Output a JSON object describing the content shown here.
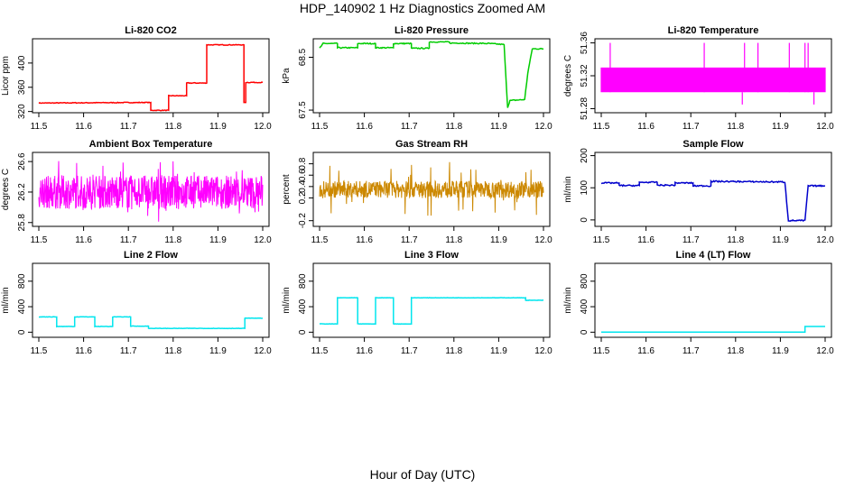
{
  "figure": {
    "title": "HDP_140902  1 Hz Diagnostics Zoomed AM",
    "xlabel": "Hour of Day (UTC)"
  },
  "chart_data": [
    {
      "type": "line",
      "title": "Li-820 CO2",
      "ylabel": "Licor ppm",
      "color": "#ff0000",
      "xlim": [
        11.5,
        12.0
      ],
      "ylim": [
        318,
        440
      ],
      "xticks": [
        "11.5",
        "11.6",
        "11.7",
        "11.8",
        "11.9",
        "12.0"
      ],
      "yticks": [
        "320",
        "360",
        "400"
      ],
      "noise": 0.6,
      "series": [
        {
          "x": [
            11.5,
            11.75,
            11.75,
            11.79,
            11.79,
            11.83,
            11.83,
            11.875,
            11.875,
            11.958,
            11.958,
            11.962,
            11.962,
            12.0
          ],
          "y": [
            334,
            335,
            322,
            322,
            346,
            346,
            367,
            367,
            430,
            430,
            335,
            335,
            368,
            368
          ]
        }
      ]
    },
    {
      "type": "line",
      "title": "Li-820 Pressure",
      "ylabel": "kPa",
      "color": "#00cc00",
      "xlim": [
        11.5,
        12.0
      ],
      "ylim": [
        67.45,
        68.85
      ],
      "xticks": [
        "11.5",
        "11.6",
        "11.7",
        "11.8",
        "11.9",
        "12.0"
      ],
      "yticks": [
        "67.5",
        "68.5"
      ],
      "noise": 0.01,
      "series": [
        {
          "x": [
            11.5,
            11.508,
            11.54,
            11.54,
            11.585,
            11.585,
            11.625,
            11.625,
            11.665,
            11.665,
            11.705,
            11.705,
            11.745,
            11.745,
            11.79,
            11.79,
            11.88,
            11.912,
            11.92,
            11.925,
            11.958,
            11.965,
            11.975,
            12.0
          ],
          "y": [
            68.67,
            68.76,
            68.76,
            68.68,
            68.68,
            68.76,
            68.76,
            68.68,
            68.68,
            68.76,
            68.76,
            68.67,
            68.67,
            68.79,
            68.79,
            68.77,
            68.76,
            68.74,
            67.55,
            67.68,
            67.7,
            68.2,
            68.66,
            68.66
          ]
        }
      ]
    },
    {
      "type": "line",
      "title": "Li-820 Temperature",
      "ylabel": "degrees C",
      "color": "#ff00ff",
      "xlim": [
        11.5,
        12.0
      ],
      "ylim": [
        51.275,
        51.365
      ],
      "xticks": [
        "11.5",
        "11.6",
        "11.7",
        "11.8",
        "11.9",
        "12.0"
      ],
      "yticks": [
        "51.28",
        "51.32",
        "51.36"
      ],
      "noise": 0,
      "style": "toggle",
      "levels": [
        51.3,
        51.33
      ],
      "spikes": [
        {
          "x": 11.52,
          "y": 51.36
        },
        {
          "x": 11.73,
          "y": 51.36
        },
        {
          "x": 11.815,
          "y": 51.285
        },
        {
          "x": 11.82,
          "y": 51.36
        },
        {
          "x": 11.85,
          "y": 51.36
        },
        {
          "x": 11.92,
          "y": 51.36
        },
        {
          "x": 11.955,
          "y": 51.36
        },
        {
          "x": 11.962,
          "y": 51.36
        },
        {
          "x": 11.975,
          "y": 51.285
        }
      ]
    },
    {
      "type": "line",
      "title": "Ambient Box Temperature",
      "ylabel": "degrees C",
      "color": "#ff00ff",
      "xlim": [
        11.5,
        12.0
      ],
      "ylim": [
        25.75,
        26.72
      ],
      "xticks": [
        "11.5",
        "11.6",
        "11.7",
        "11.8",
        "11.9",
        "12.0"
      ],
      "yticks": [
        "25.8",
        "26.2",
        "26.6"
      ],
      "style": "dense",
      "center": 26.2,
      "spread": 0.22,
      "peak": 0.42
    },
    {
      "type": "line",
      "title": "Gas Stream RH",
      "ylabel": "percent",
      "color": "#cc8800",
      "xlim": [
        11.5,
        12.0
      ],
      "ylim": [
        -0.3,
        1.0
      ],
      "xticks": [
        "11.5",
        "11.6",
        "11.7",
        "11.8",
        "11.9",
        "12.0"
      ],
      "yticks": [
        "-0.2",
        "0.2",
        "0.4",
        "0.6",
        "0.8"
      ],
      "style": "dense",
      "center": 0.35,
      "spread": 0.15,
      "peak": 0.5
    },
    {
      "type": "line",
      "title": "Sample Flow",
      "ylabel": "ml/min",
      "color": "#0000cc",
      "xlim": [
        11.5,
        12.0
      ],
      "ylim": [
        -20,
        210
      ],
      "xticks": [
        "11.5",
        "11.6",
        "11.7",
        "11.8",
        "11.9",
        "12.0"
      ],
      "yticks": [
        "0",
        "100",
        "200"
      ],
      "noise": 2,
      "series": [
        {
          "x": [
            11.5,
            11.54,
            11.54,
            11.585,
            11.585,
            11.625,
            11.625,
            11.665,
            11.665,
            11.705,
            11.705,
            11.745,
            11.745,
            11.91,
            11.918,
            11.955,
            11.962,
            12.0
          ],
          "y": [
            115,
            115,
            107,
            107,
            117,
            117,
            108,
            108,
            115,
            115,
            106,
            106,
            120,
            118,
            -2,
            -2,
            106,
            106
          ]
        }
      ]
    },
    {
      "type": "line",
      "title": "Line 2 Flow",
      "ylabel": "ml/min",
      "color": "#00e5ee",
      "xlim": [
        11.5,
        12.0
      ],
      "ylim": [
        -80,
        1080
      ],
      "xticks": [
        "11.5",
        "11.6",
        "11.7",
        "11.8",
        "11.9",
        "12.0"
      ],
      "yticks": [
        "0",
        "400",
        "800"
      ],
      "noise": 3,
      "series": [
        {
          "x": [
            11.5,
            11.54,
            11.54,
            11.58,
            11.58,
            11.625,
            11.625,
            11.665,
            11.665,
            11.705,
            11.705,
            11.745,
            11.745,
            11.96,
            11.96,
            12.0
          ],
          "y": [
            240,
            240,
            90,
            90,
            240,
            240,
            90,
            90,
            240,
            240,
            95,
            95,
            60,
            60,
            220,
            220
          ]
        }
      ]
    },
    {
      "type": "line",
      "title": "Line 3 Flow",
      "ylabel": "ml/min",
      "color": "#00e5ee",
      "xlim": [
        11.5,
        12.0
      ],
      "ylim": [
        -80,
        1080
      ],
      "xticks": [
        "11.5",
        "11.6",
        "11.7",
        "11.8",
        "11.9",
        "12.0"
      ],
      "yticks": [
        "0",
        "400",
        "800"
      ],
      "noise": 3,
      "series": [
        {
          "x": [
            11.5,
            11.54,
            11.54,
            11.585,
            11.585,
            11.625,
            11.625,
            11.665,
            11.665,
            11.705,
            11.705,
            11.96,
            11.96,
            12.0
          ],
          "y": [
            130,
            130,
            540,
            540,
            130,
            130,
            540,
            540,
            130,
            130,
            540,
            540,
            500,
            500
          ]
        }
      ]
    },
    {
      "type": "line",
      "title": "Line 4 (LT) Flow",
      "ylabel": "ml/min",
      "color": "#00e5ee",
      "xlim": [
        11.5,
        12.0
      ],
      "ylim": [
        -80,
        1080
      ],
      "xticks": [
        "11.5",
        "11.6",
        "11.7",
        "11.8",
        "11.9",
        "12.0"
      ],
      "yticks": [
        "0",
        "400",
        "800"
      ],
      "noise": 0,
      "series": [
        {
          "x": [
            11.5,
            11.955,
            11.955,
            12.0
          ],
          "y": [
            0,
            0,
            90,
            90
          ]
        }
      ]
    }
  ]
}
